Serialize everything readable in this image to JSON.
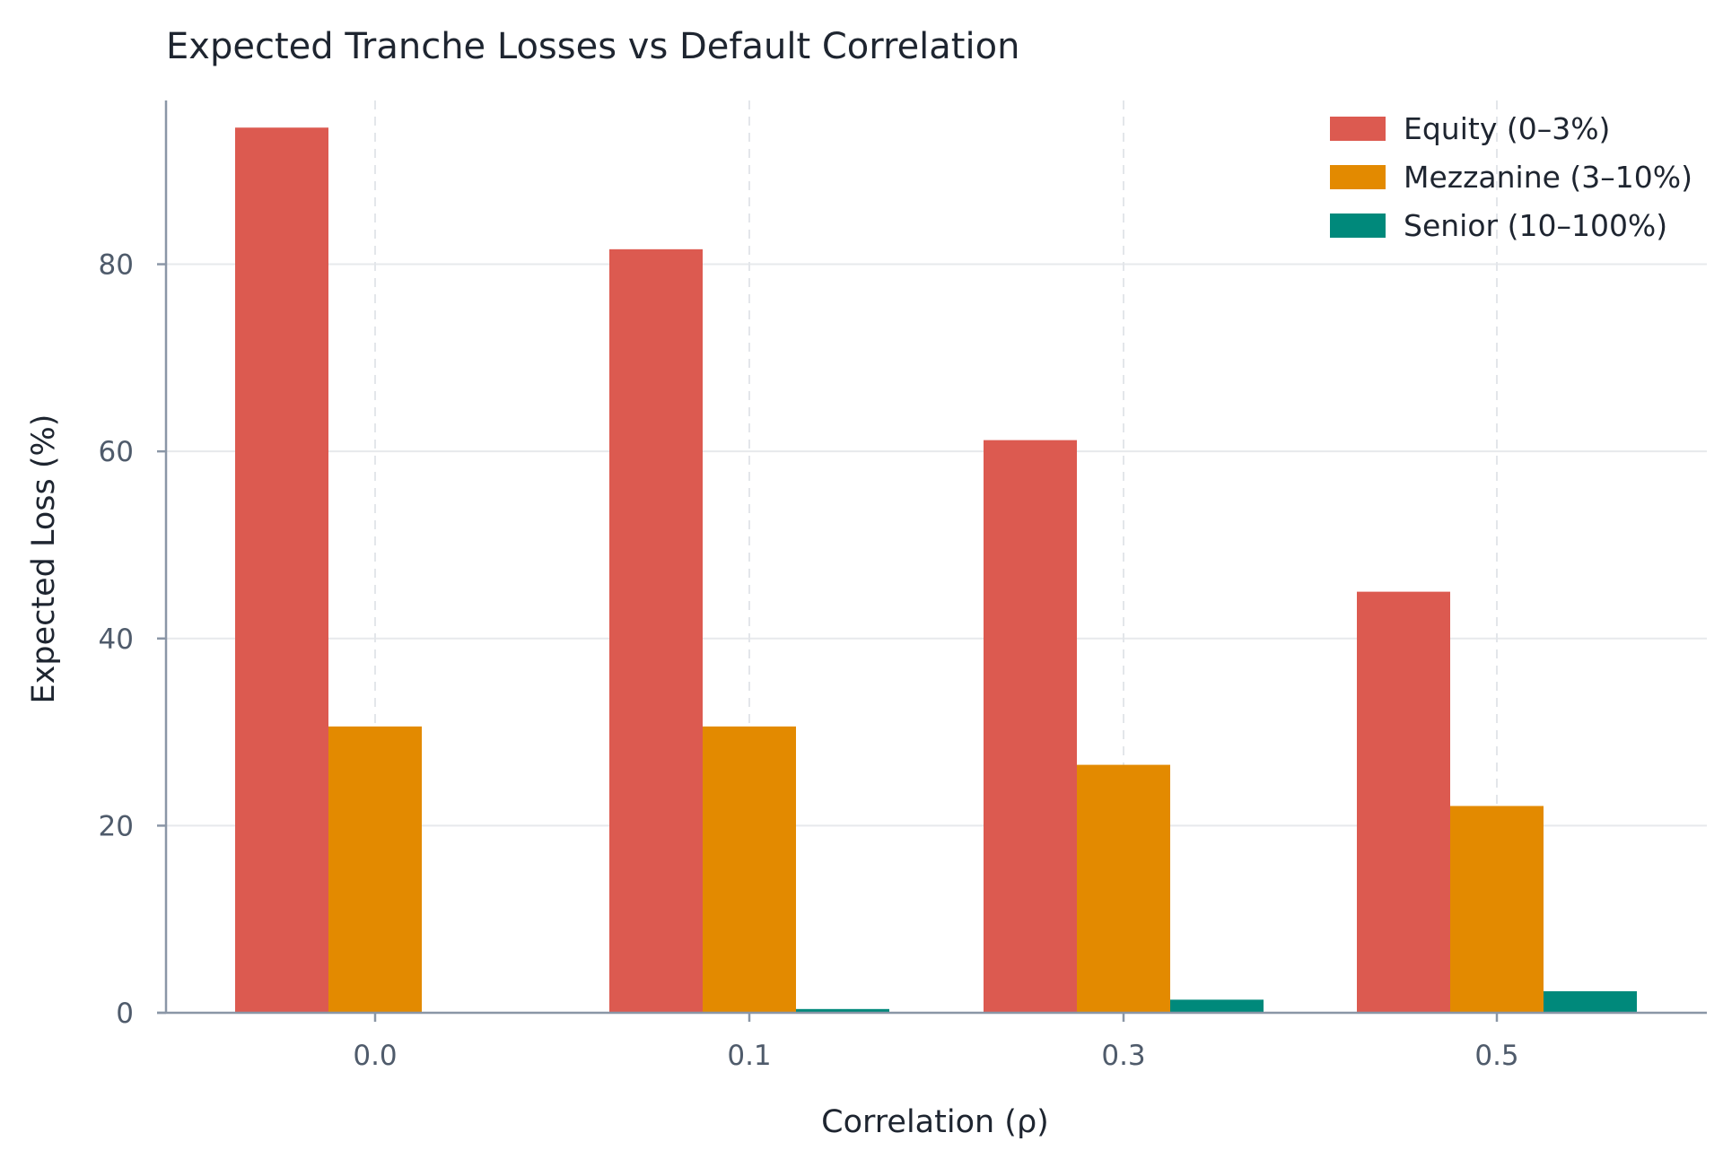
{
  "chart_data": {
    "type": "bar",
    "title": "Expected Tranche Losses vs Default Correlation",
    "xlabel": "Correlation (ρ)",
    "ylabel": "Expected Loss (%)",
    "categories": [
      "0.0",
      "0.1",
      "0.3",
      "0.5"
    ],
    "series": [
      {
        "name": "Equity (0–3%)",
        "color": "#dc5a50",
        "values": [
          94.6,
          81.6,
          61.2,
          45.0
        ]
      },
      {
        "name": "Mezzanine (3–10%)",
        "color": "#e38a00",
        "values": [
          30.6,
          30.6,
          26.5,
          22.1
        ]
      },
      {
        "name": "Senior (10–100%)",
        "color": "#00897b",
        "values": [
          0.0,
          0.4,
          1.4,
          2.3
        ]
      }
    ],
    "ylim": [
      0,
      97.5
    ],
    "yticks": [
      0,
      20,
      40,
      60,
      80
    ],
    "grid": true,
    "legend_position": "top-right"
  }
}
